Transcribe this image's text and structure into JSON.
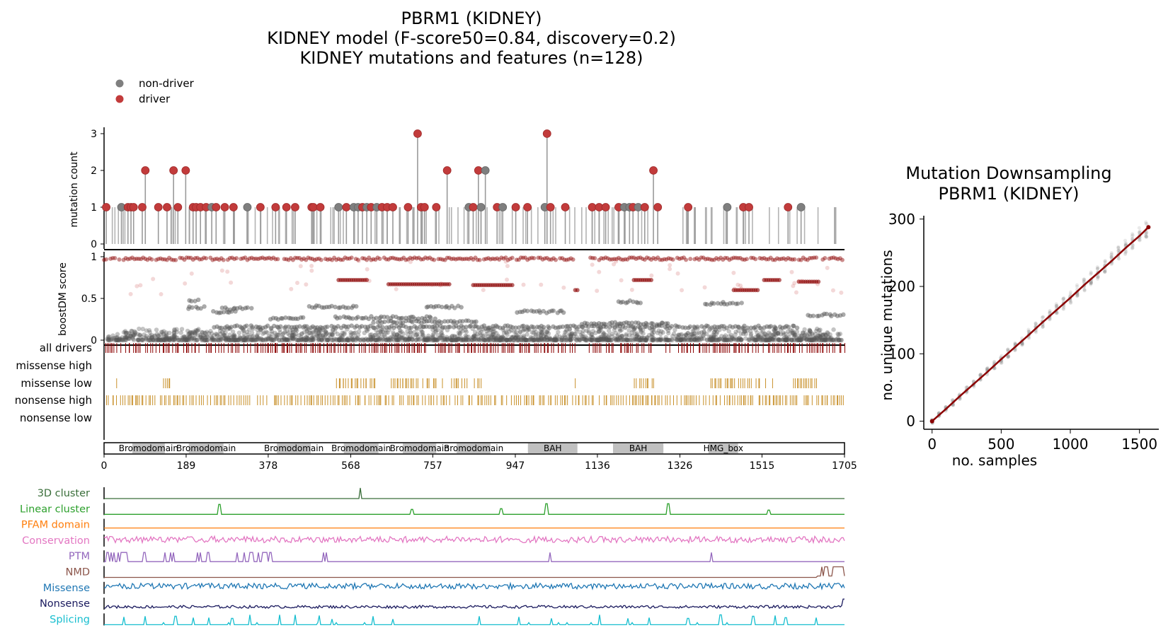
{
  "title_lines": [
    "PBRM1 (KIDNEY)",
    "KIDNEY model (F-score50=0.84, discovery=0.2)",
    "KIDNEY mutations and features (n=128)"
  ],
  "legend": [
    {
      "label": "non-driver",
      "color": "#7f7f7f"
    },
    {
      "label": "driver",
      "color": "#c23b3b"
    }
  ],
  "colors": {
    "driver": "#c23b3b",
    "driver_dark": "#8b0000",
    "non_driver": "#7f7f7f",
    "stem": "#9a9a9a",
    "orange_ticks": "#c8902a",
    "domain_fill": "#c0c0c0"
  },
  "chart_data": [
    {
      "type": "scatter",
      "name": "mutation_lollipop",
      "ylabel": "mutation count",
      "yticks": [
        0,
        1,
        2,
        3
      ],
      "ylim": [
        0,
        3.2
      ],
      "xlim": [
        0,
        1705
      ],
      "points": [
        {
          "pos": 5,
          "count": 1,
          "driver": true
        },
        {
          "pos": 40,
          "count": 1,
          "driver": false
        },
        {
          "pos": 55,
          "count": 1,
          "driver": true
        },
        {
          "pos": 62,
          "count": 1,
          "driver": true
        },
        {
          "pos": 68,
          "count": 1,
          "driver": true
        },
        {
          "pos": 88,
          "count": 1,
          "driver": true
        },
        {
          "pos": 95,
          "count": 2,
          "driver": true
        },
        {
          "pos": 125,
          "count": 1,
          "driver": true
        },
        {
          "pos": 145,
          "count": 1,
          "driver": true
        },
        {
          "pos": 160,
          "count": 2,
          "driver": true
        },
        {
          "pos": 170,
          "count": 1,
          "driver": true
        },
        {
          "pos": 188,
          "count": 2,
          "driver": true
        },
        {
          "pos": 205,
          "count": 1,
          "driver": true
        },
        {
          "pos": 212,
          "count": 1,
          "driver": true
        },
        {
          "pos": 222,
          "count": 1,
          "driver": true
        },
        {
          "pos": 235,
          "count": 1,
          "driver": true
        },
        {
          "pos": 248,
          "count": 1,
          "driver": false
        },
        {
          "pos": 258,
          "count": 1,
          "driver": true
        },
        {
          "pos": 278,
          "count": 1,
          "driver": true
        },
        {
          "pos": 298,
          "count": 1,
          "driver": true
        },
        {
          "pos": 330,
          "count": 1,
          "driver": false
        },
        {
          "pos": 360,
          "count": 1,
          "driver": true
        },
        {
          "pos": 395,
          "count": 1,
          "driver": true
        },
        {
          "pos": 420,
          "count": 1,
          "driver": true
        },
        {
          "pos": 440,
          "count": 1,
          "driver": true
        },
        {
          "pos": 478,
          "count": 1,
          "driver": true
        },
        {
          "pos": 482,
          "count": 1,
          "driver": true
        },
        {
          "pos": 498,
          "count": 1,
          "driver": true
        },
        {
          "pos": 540,
          "count": 1,
          "driver": false
        },
        {
          "pos": 558,
          "count": 1,
          "driver": true
        },
        {
          "pos": 575,
          "count": 1,
          "driver": false
        },
        {
          "pos": 585,
          "count": 1,
          "driver": false
        },
        {
          "pos": 595,
          "count": 1,
          "driver": true
        },
        {
          "pos": 605,
          "count": 1,
          "driver": false
        },
        {
          "pos": 615,
          "count": 1,
          "driver": true
        },
        {
          "pos": 628,
          "count": 1,
          "driver": false
        },
        {
          "pos": 640,
          "count": 1,
          "driver": true
        },
        {
          "pos": 652,
          "count": 1,
          "driver": true
        },
        {
          "pos": 665,
          "count": 1,
          "driver": true
        },
        {
          "pos": 700,
          "count": 1,
          "driver": true
        },
        {
          "pos": 722,
          "count": 3,
          "driver": true
        },
        {
          "pos": 730,
          "count": 1,
          "driver": true
        },
        {
          "pos": 738,
          "count": 1,
          "driver": true
        },
        {
          "pos": 765,
          "count": 1,
          "driver": true
        },
        {
          "pos": 790,
          "count": 2,
          "driver": true
        },
        {
          "pos": 840,
          "count": 1,
          "driver": false
        },
        {
          "pos": 850,
          "count": 1,
          "driver": true
        },
        {
          "pos": 862,
          "count": 2,
          "driver": true
        },
        {
          "pos": 868,
          "count": 1,
          "driver": false
        },
        {
          "pos": 878,
          "count": 2,
          "driver": false
        },
        {
          "pos": 905,
          "count": 1,
          "driver": true
        },
        {
          "pos": 918,
          "count": 1,
          "driver": false
        },
        {
          "pos": 948,
          "count": 1,
          "driver": true
        },
        {
          "pos": 975,
          "count": 1,
          "driver": true
        },
        {
          "pos": 1020,
          "count": 3,
          "driver": true
        },
        {
          "pos": 1015,
          "count": 1,
          "driver": false
        },
        {
          "pos": 1028,
          "count": 1,
          "driver": true
        },
        {
          "pos": 1062,
          "count": 1,
          "driver": true
        },
        {
          "pos": 1124,
          "count": 1,
          "driver": true
        },
        {
          "pos": 1140,
          "count": 1,
          "driver": true
        },
        {
          "pos": 1155,
          "count": 1,
          "driver": true
        },
        {
          "pos": 1185,
          "count": 1,
          "driver": true
        },
        {
          "pos": 1198,
          "count": 1,
          "driver": false
        },
        {
          "pos": 1210,
          "count": 1,
          "driver": false
        },
        {
          "pos": 1218,
          "count": 1,
          "driver": true
        },
        {
          "pos": 1230,
          "count": 1,
          "driver": false
        },
        {
          "pos": 1245,
          "count": 1,
          "driver": true
        },
        {
          "pos": 1265,
          "count": 2,
          "driver": true
        },
        {
          "pos": 1275,
          "count": 1,
          "driver": true
        },
        {
          "pos": 1345,
          "count": 1,
          "driver": true
        },
        {
          "pos": 1435,
          "count": 1,
          "driver": false
        },
        {
          "pos": 1472,
          "count": 1,
          "driver": true
        },
        {
          "pos": 1485,
          "count": 1,
          "driver": true
        },
        {
          "pos": 1575,
          "count": 1,
          "driver": true
        },
        {
          "pos": 1605,
          "count": 1,
          "driver": false
        }
      ]
    },
    {
      "type": "scatter",
      "name": "boostdm_scores",
      "ylabel": "boostDM score",
      "yticks": [
        0,
        0.5,
        1
      ],
      "ylim": [
        0,
        1.03
      ],
      "xlim": [
        0,
        1705
      ]
    },
    {
      "type": "table",
      "name": "variant_tracks",
      "rows": [
        "all drivers",
        "missense high",
        "missense low",
        "nonsense high",
        "nonsense low"
      ]
    },
    {
      "type": "bar",
      "name": "protein_domains",
      "xlim": [
        0,
        1705
      ],
      "xticks": [
        0,
        189,
        378,
        568,
        757,
        947,
        1136,
        1326,
        1515,
        1705
      ],
      "domains": [
        {
          "name": "Bromodomain",
          "start": 65,
          "end": 140
        },
        {
          "name": "Bromodomain",
          "start": 195,
          "end": 275
        },
        {
          "name": "Bromodomain",
          "start": 398,
          "end": 476
        },
        {
          "name": "Bromodomain",
          "start": 552,
          "end": 632
        },
        {
          "name": "Bromodomain",
          "start": 688,
          "end": 765
        },
        {
          "name": "Bromodomain",
          "start": 812,
          "end": 890
        },
        {
          "name": "BAH",
          "start": 976,
          "end": 1090
        },
        {
          "name": "BAH",
          "start": 1172,
          "end": 1288
        },
        {
          "name": "HMG_box",
          "start": 1392,
          "end": 1460
        }
      ]
    },
    {
      "type": "line",
      "name": "feature_tracks",
      "tracks": [
        {
          "label": "3D cluster",
          "color": "#3a6e3a"
        },
        {
          "label": "Linear cluster",
          "color": "#2ca02c"
        },
        {
          "label": "PFAM domain",
          "color": "#ff7f0e"
        },
        {
          "label": "Conservation",
          "color": "#e377c2"
        },
        {
          "label": "PTM",
          "color": "#9467bd"
        },
        {
          "label": "NMD",
          "color": "#8c564b"
        },
        {
          "label": "Missense",
          "color": "#1f77b4"
        },
        {
          "label": "Nonsense",
          "color": "#1a1a5e"
        },
        {
          "label": "Splicing",
          "color": "#17becf"
        }
      ]
    },
    {
      "type": "line",
      "name": "downsampling",
      "title": [
        "Mutation Downsampling",
        "PBRM1 (KIDNEY)"
      ],
      "xlabel": "no. samples",
      "ylabel": "no. unique mutations",
      "xlim": [
        -60,
        1640
      ],
      "ylim": [
        -12,
        305
      ],
      "xticks": [
        0,
        500,
        1000,
        1500
      ],
      "yticks": [
        0,
        100,
        200,
        300
      ],
      "series": [
        {
          "x": [
            0,
            100,
            200,
            300,
            400,
            500,
            600,
            700,
            800,
            900,
            1000,
            1100,
            1200,
            1300,
            1400,
            1500,
            1565
          ],
          "y": [
            0,
            18,
            37,
            55,
            73,
            92,
            110,
            128,
            147,
            165,
            183,
            202,
            220,
            238,
            257,
            275,
            288
          ]
        }
      ]
    }
  ]
}
